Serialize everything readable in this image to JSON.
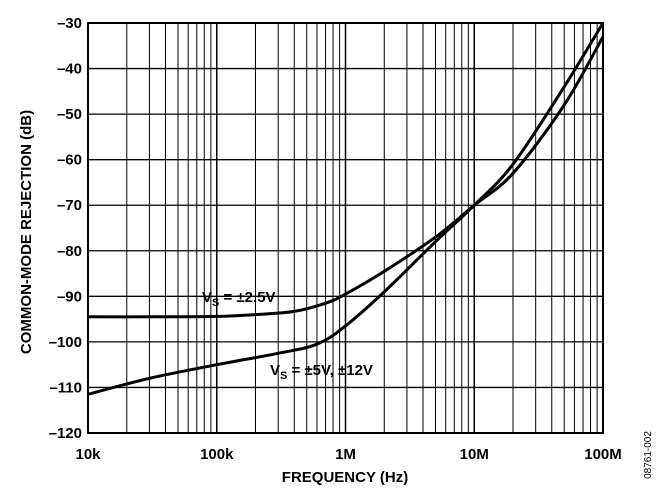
{
  "chart_data": {
    "type": "line",
    "title": "",
    "xlabel": "FREQUENCY (Hz)",
    "ylabel": "COMMON-MODE REJECTION (dB)",
    "xscale": "log",
    "xlim": [
      10000,
      100000000
    ],
    "ylim": [
      -120,
      -30
    ],
    "x_tick_values": [
      10000,
      100000,
      1000000,
      10000000,
      100000000
    ],
    "x_tick_labels": [
      "10k",
      "100k",
      "1M",
      "10M",
      "100M"
    ],
    "y_ticks": [
      -30,
      -40,
      -50,
      -60,
      -70,
      -80,
      -90,
      -100,
      -110,
      -120
    ],
    "grid": true,
    "legend": "none",
    "series": [
      {
        "label_main": "V",
        "label_sub": "S",
        "label_rest": " = ±2.5V",
        "x": [
          10000,
          30000,
          100000,
          200000,
          400000,
          700000,
          1000000,
          2000000,
          5000000,
          10000000,
          20000000,
          50000000,
          100000000
        ],
        "y": [
          -94.5,
          -94.5,
          -94.4,
          -94,
          -93.3,
          -91.5,
          -89.5,
          -84.5,
          -77,
          -70,
          -63,
          -48,
          -33
        ]
      },
      {
        "label_main": "V",
        "label_sub": "S",
        "label_rest": " = ±5V, ±12V",
        "x": [
          10000,
          30000,
          100000,
          300000,
          600000,
          1000000,
          2000000,
          5000000,
          10000000,
          20000000,
          50000000,
          100000000
        ],
        "y": [
          -111.5,
          -108,
          -105,
          -102.5,
          -100.5,
          -96.5,
          -89,
          -78,
          -70,
          -61,
          -44,
          -30
        ]
      }
    ]
  },
  "figure_id": "08761-002"
}
